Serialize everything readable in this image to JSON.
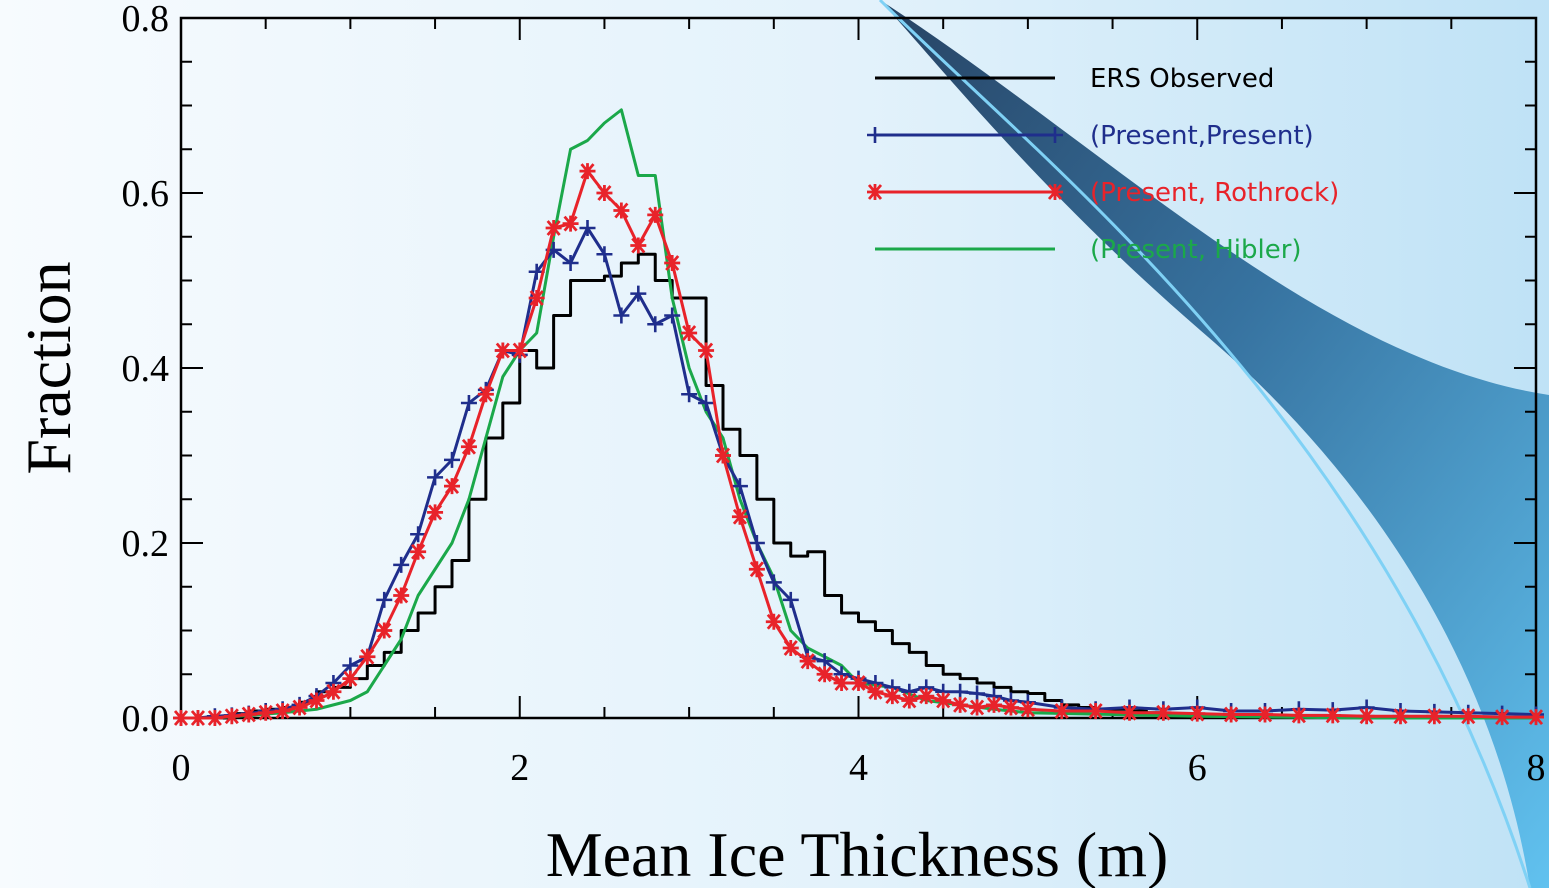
{
  "chart_data": {
    "type": "line",
    "title": "",
    "xlabel": "Mean Ice Thickness (m)",
    "ylabel": "Fraction",
    "xlim": [
      0,
      8
    ],
    "ylim": [
      0.0,
      0.8
    ],
    "xticks": [
      0,
      2,
      4,
      6,
      8
    ],
    "xtick_labels": [
      "0",
      "2",
      "4",
      "6",
      "8"
    ],
    "yticks": [
      0.0,
      0.2,
      0.4,
      0.6,
      0.8
    ],
    "ytick_labels": [
      "0.0",
      "0.2",
      "0.4",
      "0.6",
      "0.8"
    ],
    "grid": false,
    "legend_position": "top-right",
    "series": [
      {
        "name": "ERS Observed",
        "color": "#000000",
        "style": "step",
        "marker": "none",
        "x": [
          0.0,
          0.1,
          0.2,
          0.3,
          0.4,
          0.5,
          0.6,
          0.7,
          0.8,
          0.9,
          1.0,
          1.1,
          1.2,
          1.3,
          1.4,
          1.5,
          1.6,
          1.7,
          1.8,
          1.9,
          2.0,
          2.1,
          2.2,
          2.3,
          2.4,
          2.5,
          2.6,
          2.7,
          2.8,
          2.9,
          3.0,
          3.1,
          3.2,
          3.3,
          3.4,
          3.5,
          3.6,
          3.7,
          3.8,
          3.9,
          4.0,
          4.1,
          4.2,
          4.3,
          4.4,
          4.5,
          4.6,
          4.7,
          4.8,
          4.9,
          5.0,
          5.1,
          5.2,
          5.3,
          5.4,
          5.5,
          5.6,
          5.7,
          5.8,
          5.9,
          6.0,
          6.5,
          7.0,
          7.5,
          8.0
        ],
        "y": [
          0.0,
          0.0,
          0.0,
          0.005,
          0.008,
          0.01,
          0.012,
          0.018,
          0.03,
          0.035,
          0.045,
          0.06,
          0.075,
          0.1,
          0.12,
          0.15,
          0.18,
          0.25,
          0.32,
          0.36,
          0.42,
          0.4,
          0.46,
          0.5,
          0.5,
          0.505,
          0.52,
          0.53,
          0.5,
          0.48,
          0.48,
          0.38,
          0.33,
          0.3,
          0.25,
          0.2,
          0.185,
          0.19,
          0.14,
          0.12,
          0.11,
          0.1,
          0.085,
          0.075,
          0.06,
          0.05,
          0.045,
          0.04,
          0.035,
          0.03,
          0.028,
          0.02,
          0.015,
          0.012,
          0.01,
          0.01,
          0.008,
          0.006,
          0.005,
          0.004,
          0.003,
          0.002,
          0.001,
          0.0,
          0.0
        ]
      },
      {
        "name": "(Present,Present)",
        "color": "#1f2e8c",
        "style": "line",
        "marker": "plus",
        "x": [
          0.0,
          0.1,
          0.2,
          0.3,
          0.4,
          0.5,
          0.6,
          0.7,
          0.8,
          0.9,
          1.0,
          1.1,
          1.2,
          1.3,
          1.4,
          1.5,
          1.6,
          1.7,
          1.8,
          1.9,
          2.0,
          2.1,
          2.2,
          2.3,
          2.4,
          2.5,
          2.6,
          2.7,
          2.8,
          2.9,
          3.0,
          3.1,
          3.2,
          3.3,
          3.4,
          3.5,
          3.6,
          3.7,
          3.8,
          3.9,
          4.0,
          4.1,
          4.2,
          4.3,
          4.4,
          4.5,
          4.6,
          4.7,
          4.8,
          4.9,
          5.0,
          5.2,
          5.4,
          5.6,
          5.8,
          6.0,
          6.2,
          6.4,
          6.6,
          6.8,
          7.0,
          7.2,
          7.4,
          7.6,
          7.8,
          8.0
        ],
        "y": [
          0.0,
          0.0,
          0.002,
          0.003,
          0.005,
          0.008,
          0.01,
          0.015,
          0.025,
          0.04,
          0.06,
          0.07,
          0.135,
          0.175,
          0.21,
          0.275,
          0.295,
          0.36,
          0.375,
          0.42,
          0.415,
          0.51,
          0.535,
          0.52,
          0.56,
          0.53,
          0.46,
          0.485,
          0.45,
          0.46,
          0.37,
          0.36,
          0.3,
          0.265,
          0.2,
          0.155,
          0.135,
          0.07,
          0.065,
          0.05,
          0.045,
          0.04,
          0.035,
          0.03,
          0.035,
          0.03,
          0.03,
          0.028,
          0.025,
          0.02,
          0.018,
          0.012,
          0.01,
          0.012,
          0.01,
          0.012,
          0.008,
          0.008,
          0.01,
          0.009,
          0.012,
          0.008,
          0.007,
          0.006,
          0.005,
          0.004
        ]
      },
      {
        "name": "(Present, Rothrock)",
        "color": "#e8232a",
        "style": "line",
        "marker": "asterisk",
        "x": [
          0.0,
          0.1,
          0.2,
          0.3,
          0.4,
          0.5,
          0.6,
          0.7,
          0.8,
          0.9,
          1.0,
          1.1,
          1.2,
          1.3,
          1.4,
          1.5,
          1.6,
          1.7,
          1.8,
          1.9,
          2.0,
          2.1,
          2.2,
          2.3,
          2.4,
          2.5,
          2.6,
          2.7,
          2.8,
          2.9,
          3.0,
          3.1,
          3.2,
          3.3,
          3.4,
          3.5,
          3.6,
          3.7,
          3.8,
          3.9,
          4.0,
          4.1,
          4.2,
          4.3,
          4.4,
          4.5,
          4.6,
          4.7,
          4.8,
          4.9,
          5.0,
          5.2,
          5.4,
          5.6,
          5.8,
          6.0,
          6.2,
          6.4,
          6.6,
          6.8,
          7.0,
          7.2,
          7.4,
          7.6,
          7.8,
          8.0
        ],
        "y": [
          0.0,
          0.0,
          0.0,
          0.002,
          0.004,
          0.006,
          0.008,
          0.012,
          0.02,
          0.03,
          0.045,
          0.07,
          0.1,
          0.14,
          0.19,
          0.235,
          0.265,
          0.31,
          0.37,
          0.42,
          0.42,
          0.48,
          0.56,
          0.565,
          0.625,
          0.6,
          0.58,
          0.54,
          0.575,
          0.52,
          0.44,
          0.42,
          0.3,
          0.23,
          0.17,
          0.11,
          0.08,
          0.065,
          0.05,
          0.04,
          0.04,
          0.03,
          0.025,
          0.02,
          0.025,
          0.02,
          0.015,
          0.012,
          0.015,
          0.012,
          0.01,
          0.008,
          0.008,
          0.006,
          0.006,
          0.005,
          0.004,
          0.004,
          0.003,
          0.003,
          0.002,
          0.002,
          0.002,
          0.002,
          0.001,
          0.001
        ]
      },
      {
        "name": "(Present, Hibler)",
        "color": "#1ba84a",
        "style": "line",
        "marker": "none",
        "x": [
          0.0,
          0.2,
          0.4,
          0.6,
          0.8,
          1.0,
          1.1,
          1.2,
          1.3,
          1.4,
          1.5,
          1.6,
          1.7,
          1.8,
          1.9,
          2.0,
          2.1,
          2.2,
          2.3,
          2.4,
          2.5,
          2.6,
          2.7,
          2.8,
          2.9,
          3.0,
          3.1,
          3.2,
          3.3,
          3.4,
          3.5,
          3.6,
          3.7,
          3.8,
          3.9,
          4.0,
          4.2,
          4.4,
          4.6,
          4.8,
          5.0,
          5.5,
          6.0,
          6.5,
          7.0,
          7.5,
          8.0
        ],
        "y": [
          0.0,
          0.0,
          0.003,
          0.006,
          0.01,
          0.02,
          0.03,
          0.06,
          0.09,
          0.14,
          0.17,
          0.2,
          0.25,
          0.32,
          0.39,
          0.42,
          0.44,
          0.55,
          0.65,
          0.66,
          0.68,
          0.695,
          0.62,
          0.62,
          0.48,
          0.4,
          0.35,
          0.32,
          0.25,
          0.2,
          0.16,
          0.1,
          0.08,
          0.07,
          0.06,
          0.04,
          0.035,
          0.02,
          0.015,
          0.01,
          0.006,
          0.004,
          0.002,
          0.001,
          0.0,
          0.0,
          0.0
        ]
      }
    ]
  }
}
